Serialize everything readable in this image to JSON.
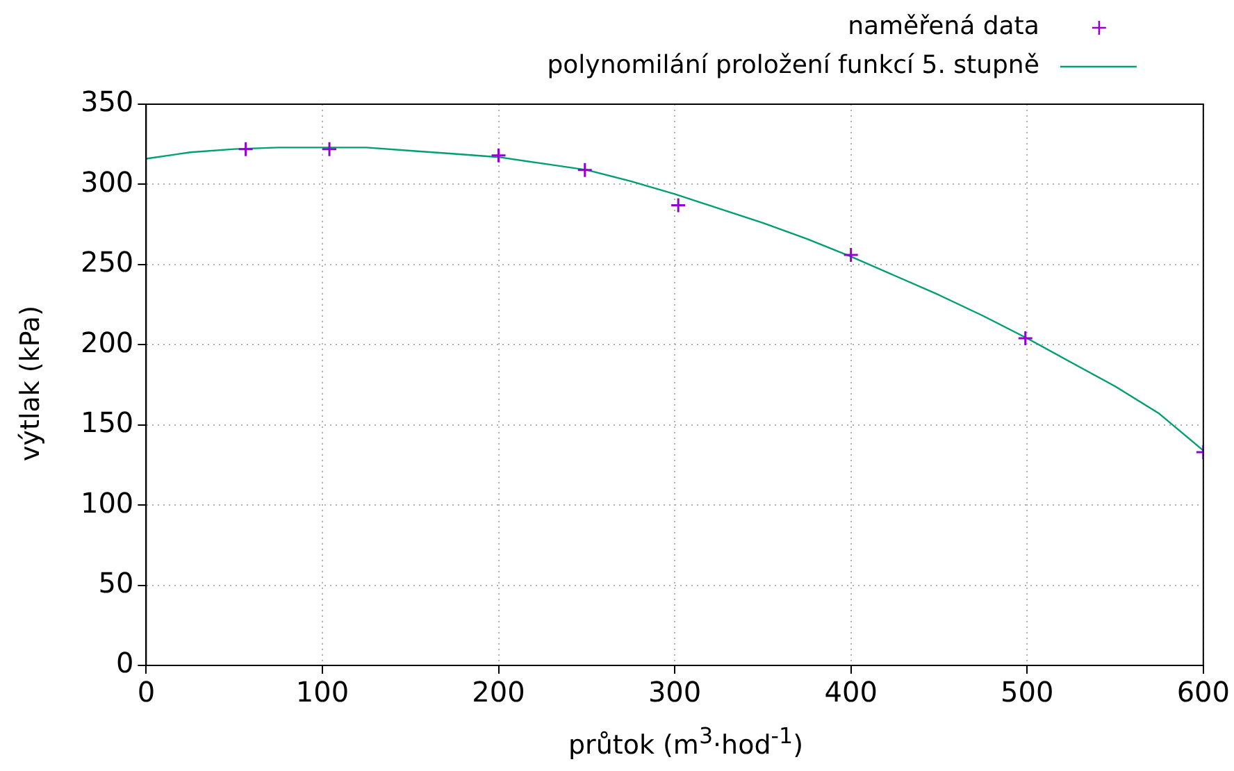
{
  "chart_data": {
    "type": "scatter",
    "xlabel": "průtok (m$^{3}$·hod$^{-1}$)",
    "ylabel": "výtlak (kPa)",
    "series": [
      {
        "name": "naměřená data",
        "type": "scatter",
        "color": "#9400d3",
        "marker": "cross",
        "x": [
          56.5,
          104,
          200,
          249,
          302,
          400,
          499,
          600
        ],
        "values": [
          322,
          322,
          318,
          309,
          287,
          256,
          204,
          133
        ]
      },
      {
        "name": "polynomilání proložení funkcí 5. stupně",
        "type": "line",
        "color": "#009e73",
        "marker": "none",
        "line_style": "solid",
        "x": [
          0,
          25,
          50,
          75,
          100,
          125,
          150,
          175,
          200,
          225,
          250,
          275,
          300,
          325,
          350,
          375,
          400,
          425,
          450,
          475,
          500,
          525,
          550,
          575,
          600
        ],
        "values": [
          316,
          320,
          322,
          323,
          323,
          323,
          321,
          319,
          317,
          313,
          309,
          302,
          294,
          285,
          276,
          266,
          255,
          243,
          231,
          218,
          204,
          189,
          174,
          157,
          134
        ]
      }
    ],
    "xlim": [
      0,
      600
    ],
    "xticks": [
      0,
      100,
      200,
      300,
      400,
      500,
      600
    ],
    "ylim": [
      0,
      350
    ],
    "yticks": [
      0,
      50,
      100,
      150,
      200,
      250,
      300,
      350
    ],
    "grid": true,
    "legend": "top right"
  }
}
